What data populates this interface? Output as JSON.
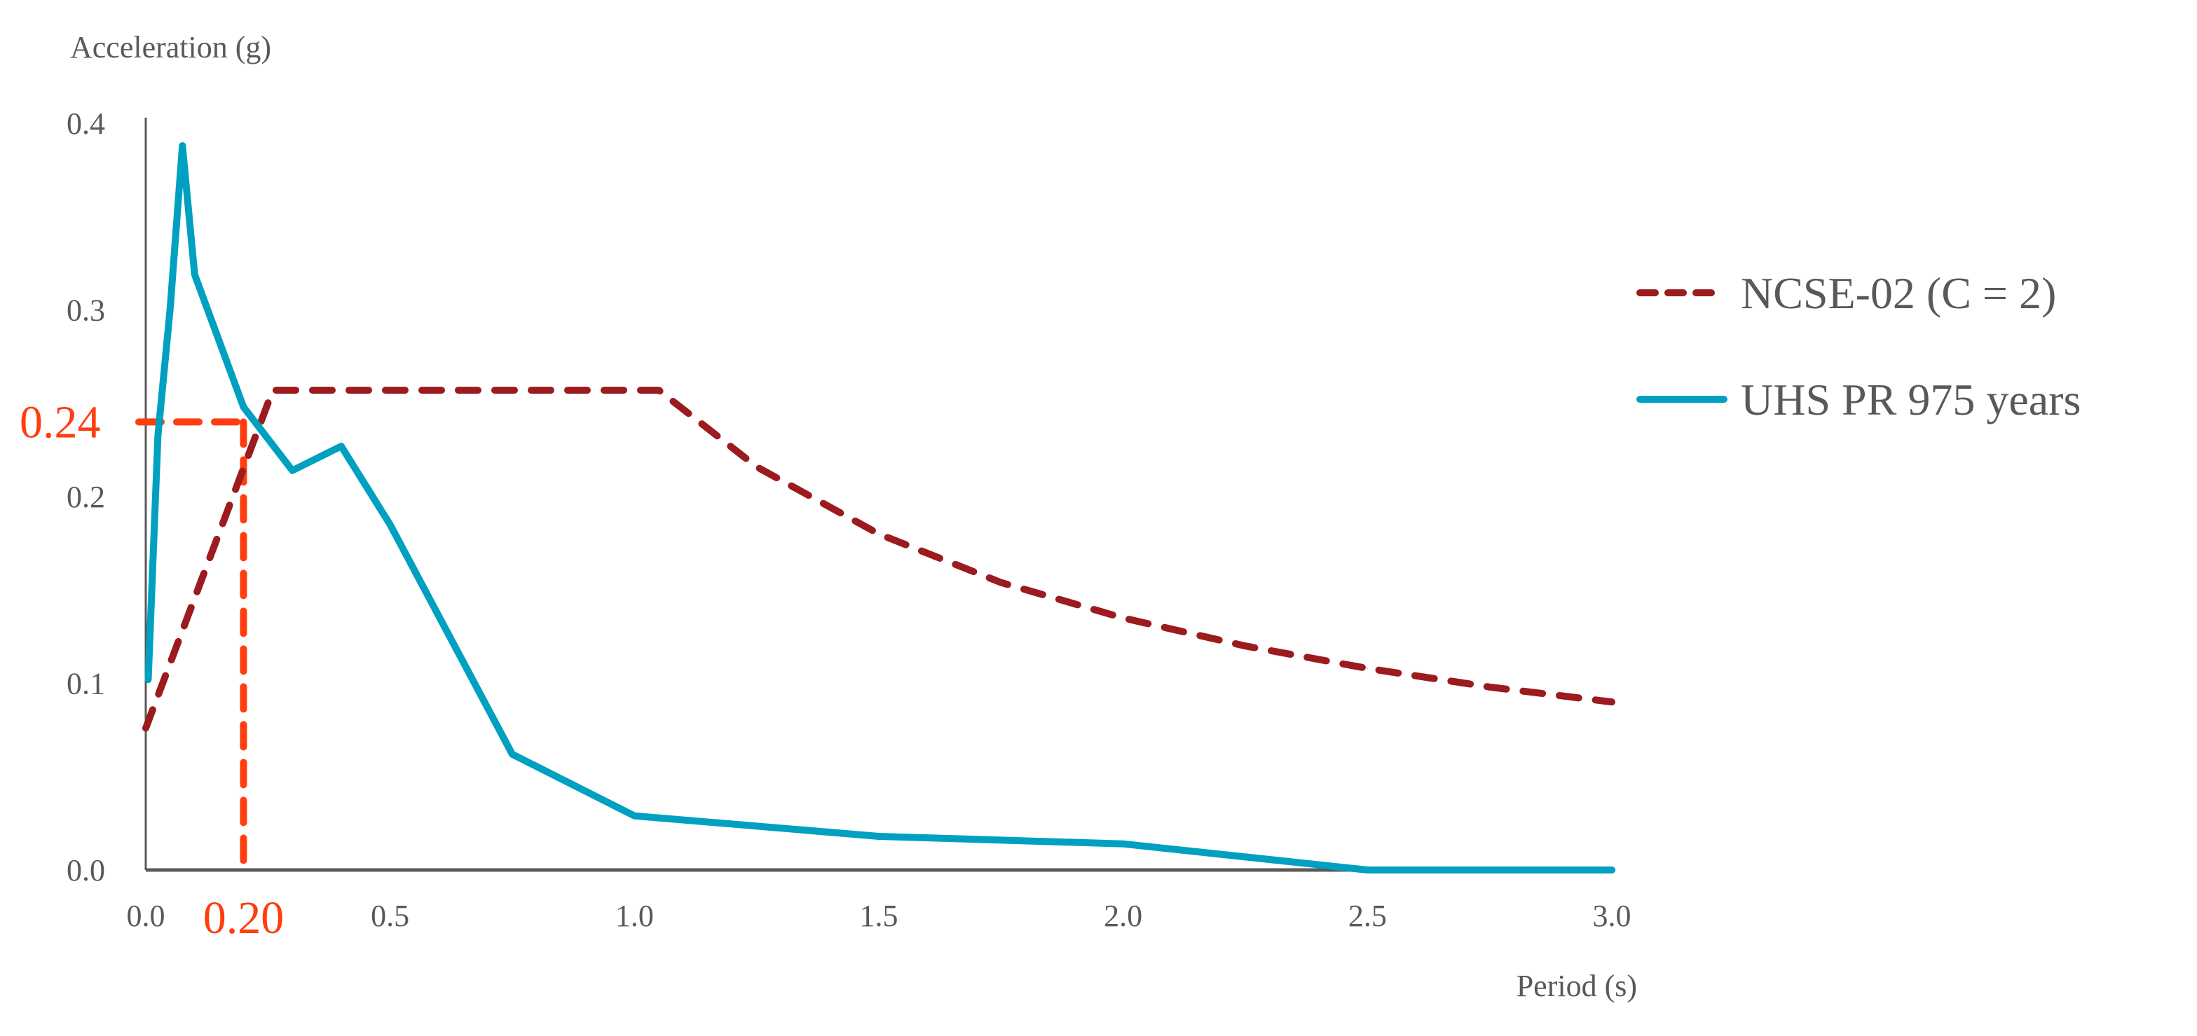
{
  "chart_data": {
    "type": "line",
    "xlabel": "Period (s)",
    "ylabel": "Acceleration (g)",
    "xlim": [
      0,
      3.0
    ],
    "ylim": [
      0,
      0.4
    ],
    "x_ticks": [
      "0.0",
      "0.5",
      "1.0",
      "1.5",
      "2.0",
      "2.5",
      "3.0"
    ],
    "y_ticks": [
      "0.0",
      "0.1",
      "0.2",
      "0.3",
      "0.4"
    ],
    "grid": false,
    "legend_position": "right",
    "series": [
      {
        "name": "NCSE-02 (C = 2)",
        "style": "dashed",
        "color": "#9B1B1E",
        "x": [
          0,
          0.26,
          1.05,
          1.25,
          1.5,
          1.75,
          2.0,
          2.25,
          2.5,
          2.75,
          3.0
        ],
        "y": [
          0.076,
          0.257,
          0.257,
          0.216,
          0.18,
          0.154,
          0.135,
          0.12,
          0.108,
          0.098,
          0.09
        ]
      },
      {
        "name": "UHS PR 975 years",
        "style": "solid",
        "color": "#00A0C0",
        "x": [
          0.005,
          0.025,
          0.05,
          0.075,
          0.1,
          0.2,
          0.3,
          0.4,
          0.5,
          0.75,
          1.0,
          1.5,
          2.0,
          2.5,
          3.0
        ],
        "y": [
          0.102,
          0.233,
          0.301,
          0.388,
          0.319,
          0.248,
          0.214,
          0.227,
          0.185,
          0.062,
          0.029,
          0.018,
          0.014,
          0.0,
          0.0
        ]
      }
    ],
    "annotation": {
      "x": 0.2,
      "y": 0.24,
      "x_label": "0.20",
      "y_label": "0.24",
      "color": "#FF3D0F"
    },
    "axis_color": "#595959"
  }
}
